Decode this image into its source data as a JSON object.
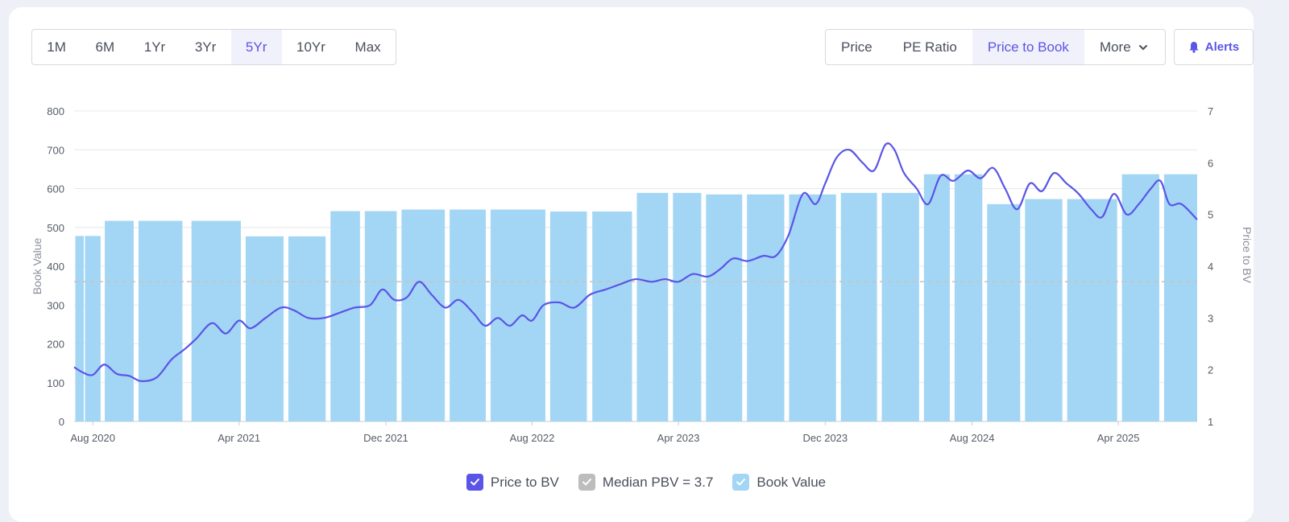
{
  "periods": [
    {
      "label": "1M",
      "active": false
    },
    {
      "label": "6M",
      "active": false
    },
    {
      "label": "1Yr",
      "active": false
    },
    {
      "label": "3Yr",
      "active": false
    },
    {
      "label": "5Yr",
      "active": true
    },
    {
      "label": "10Yr",
      "active": false
    },
    {
      "label": "Max",
      "active": false
    }
  ],
  "metrics": [
    {
      "label": "Price",
      "active": false
    },
    {
      "label": "PE Ratio",
      "active": false
    },
    {
      "label": "Price to Book",
      "active": true
    },
    {
      "label": "More",
      "active": false
    }
  ],
  "alerts_label": "Alerts",
  "colors": {
    "accent": "#5a55e6",
    "bar": "#a3d6f5",
    "median": "#c4c4c4",
    "line": "#5a55e6"
  },
  "legend": [
    {
      "label": "Price to BV",
      "color": "#5a55e6"
    },
    {
      "label": "Median PBV = 3.7",
      "color": "#bdbdbd"
    },
    {
      "label": "Book Value",
      "color": "#a3d6f5"
    }
  ],
  "chart_data": {
    "type": "bar",
    "x_tick_labels": [
      "Aug 2020",
      "Apr 2021",
      "Dec 2021",
      "Aug 2022",
      "Apr 2023",
      "Dec 2023",
      "Aug 2024",
      "Apr 2025"
    ],
    "x_range": [
      "2020-07-01",
      "2025-08-10"
    ],
    "y_left": {
      "label": "Book Value",
      "range": [
        0,
        800
      ],
      "ticks": [
        0,
        100,
        200,
        300,
        400,
        500,
        600,
        700,
        800
      ]
    },
    "y_right": {
      "label": "Price to BV",
      "range": [
        1,
        7
      ],
      "ticks": [
        1,
        2,
        3,
        4,
        5,
        6,
        7
      ]
    },
    "median_pbv": 3.7,
    "grid": true,
    "legend_position": "bottom",
    "series": [
      {
        "name": "Book Value",
        "type": "bar",
        "axis": "left",
        "data": [
          {
            "start": "2020-07-03",
            "end": "2020-07-17",
            "value": 478
          },
          {
            "start": "2020-07-19",
            "end": "2020-08-14",
            "value": 478
          },
          {
            "start": "2020-08-21",
            "end": "2020-10-08",
            "value": 517
          },
          {
            "start": "2020-10-16",
            "end": "2020-12-28",
            "value": 517
          },
          {
            "start": "2021-01-12",
            "end": "2021-04-04",
            "value": 517
          },
          {
            "start": "2021-04-12",
            "end": "2021-06-14",
            "value": 477
          },
          {
            "start": "2021-06-22",
            "end": "2021-08-23",
            "value": 477
          },
          {
            "start": "2021-08-31",
            "end": "2021-10-19",
            "value": 542
          },
          {
            "start": "2021-10-27",
            "end": "2021-12-19",
            "value": 542
          },
          {
            "start": "2021-12-27",
            "end": "2022-03-09",
            "value": 546
          },
          {
            "start": "2022-03-17",
            "end": "2022-05-16",
            "value": 546
          },
          {
            "start": "2022-05-24",
            "end": "2022-08-23",
            "value": 546
          },
          {
            "start": "2022-08-31",
            "end": "2022-10-31",
            "value": 541
          },
          {
            "start": "2022-11-09",
            "end": "2023-01-14",
            "value": 541
          },
          {
            "start": "2023-01-22",
            "end": "2023-03-15",
            "value": 589
          },
          {
            "start": "2023-03-23",
            "end": "2023-05-09",
            "value": 589
          },
          {
            "start": "2023-05-17",
            "end": "2023-07-16",
            "value": 585
          },
          {
            "start": "2023-07-24",
            "end": "2023-09-24",
            "value": 585
          },
          {
            "start": "2023-10-02",
            "end": "2023-12-19",
            "value": 585
          },
          {
            "start": "2023-12-27",
            "end": "2024-02-25",
            "value": 589
          },
          {
            "start": "2024-03-04",
            "end": "2024-05-05",
            "value": 589
          },
          {
            "start": "2024-05-13",
            "end": "2024-06-25",
            "value": 637
          },
          {
            "start": "2024-07-03",
            "end": "2024-08-18",
            "value": 637
          },
          {
            "start": "2024-08-26",
            "end": "2024-10-20",
            "value": 560
          },
          {
            "start": "2024-10-28",
            "end": "2024-12-29",
            "value": 573
          },
          {
            "start": "2025-01-06",
            "end": "2025-03-30",
            "value": 573
          },
          {
            "start": "2025-04-07",
            "end": "2025-06-08",
            "value": 637
          },
          {
            "start": "2025-06-16",
            "end": "2025-08-10",
            "value": 637
          }
        ]
      },
      {
        "name": "Price to BV",
        "type": "line",
        "axis": "right",
        "points": [
          [
            "2020-07-01",
            2.05
          ],
          [
            "2020-07-15",
            1.95
          ],
          [
            "2020-08-01",
            1.9
          ],
          [
            "2020-08-20",
            2.1
          ],
          [
            "2020-09-10",
            1.92
          ],
          [
            "2020-10-01",
            1.88
          ],
          [
            "2020-10-20",
            1.78
          ],
          [
            "2020-11-15",
            1.85
          ],
          [
            "2020-12-10",
            2.2
          ],
          [
            "2021-01-01",
            2.4
          ],
          [
            "2021-01-20",
            2.6
          ],
          [
            "2021-02-15",
            2.9
          ],
          [
            "2021-03-10",
            2.7
          ],
          [
            "2021-04-01",
            2.95
          ],
          [
            "2021-04-20",
            2.8
          ],
          [
            "2021-05-15",
            3.0
          ],
          [
            "2021-06-10",
            3.2
          ],
          [
            "2021-07-01",
            3.15
          ],
          [
            "2021-07-25",
            3.0
          ],
          [
            "2021-08-20",
            3.0
          ],
          [
            "2021-09-15",
            3.1
          ],
          [
            "2021-10-10",
            3.2
          ],
          [
            "2021-11-05",
            3.25
          ],
          [
            "2021-11-25",
            3.55
          ],
          [
            "2021-12-15",
            3.35
          ],
          [
            "2022-01-05",
            3.4
          ],
          [
            "2022-01-25",
            3.7
          ],
          [
            "2022-02-15",
            3.45
          ],
          [
            "2022-03-10",
            3.2
          ],
          [
            "2022-04-01",
            3.35
          ],
          [
            "2022-04-25",
            3.1
          ],
          [
            "2022-05-15",
            2.85
          ],
          [
            "2022-06-05",
            3.0
          ],
          [
            "2022-06-25",
            2.85
          ],
          [
            "2022-07-15",
            3.05
          ],
          [
            "2022-08-01",
            2.95
          ],
          [
            "2022-08-20",
            3.25
          ],
          [
            "2022-09-15",
            3.3
          ],
          [
            "2022-10-10",
            3.2
          ],
          [
            "2022-11-05",
            3.45
          ],
          [
            "2022-12-01",
            3.55
          ],
          [
            "2022-12-25",
            3.65
          ],
          [
            "2023-01-20",
            3.75
          ],
          [
            "2023-02-15",
            3.7
          ],
          [
            "2023-03-10",
            3.75
          ],
          [
            "2023-04-01",
            3.7
          ],
          [
            "2023-04-25",
            3.85
          ],
          [
            "2023-05-20",
            3.8
          ],
          [
            "2023-06-10",
            3.95
          ],
          [
            "2023-07-01",
            4.15
          ],
          [
            "2023-07-25",
            4.1
          ],
          [
            "2023-08-20",
            4.2
          ],
          [
            "2023-09-10",
            4.2
          ],
          [
            "2023-10-01",
            4.6
          ],
          [
            "2023-10-25",
            5.4
          ],
          [
            "2023-11-15",
            5.2
          ],
          [
            "2023-12-01",
            5.6
          ],
          [
            "2023-12-20",
            6.1
          ],
          [
            "2024-01-10",
            6.25
          ],
          [
            "2024-02-01",
            6.0
          ],
          [
            "2024-02-20",
            5.85
          ],
          [
            "2024-03-10",
            6.35
          ],
          [
            "2024-03-25",
            6.25
          ],
          [
            "2024-04-10",
            5.8
          ],
          [
            "2024-05-01",
            5.5
          ],
          [
            "2024-05-20",
            5.2
          ],
          [
            "2024-06-10",
            5.75
          ],
          [
            "2024-07-01",
            5.65
          ],
          [
            "2024-07-25",
            5.85
          ],
          [
            "2024-08-15",
            5.7
          ],
          [
            "2024-09-05",
            5.9
          ],
          [
            "2024-09-25",
            5.5
          ],
          [
            "2024-10-15",
            5.1
          ],
          [
            "2024-11-05",
            5.6
          ],
          [
            "2024-11-25",
            5.45
          ],
          [
            "2024-12-15",
            5.8
          ],
          [
            "2025-01-05",
            5.6
          ],
          [
            "2025-01-25",
            5.4
          ],
          [
            "2025-02-15",
            5.1
          ],
          [
            "2025-03-05",
            4.95
          ],
          [
            "2025-03-25",
            5.4
          ],
          [
            "2025-04-15",
            5.0
          ],
          [
            "2025-05-05",
            5.2
          ],
          [
            "2025-05-25",
            5.5
          ],
          [
            "2025-06-10",
            5.65
          ],
          [
            "2025-06-25",
            5.2
          ],
          [
            "2025-07-15",
            5.2
          ],
          [
            "2025-08-10",
            4.9
          ]
        ]
      }
    ]
  }
}
